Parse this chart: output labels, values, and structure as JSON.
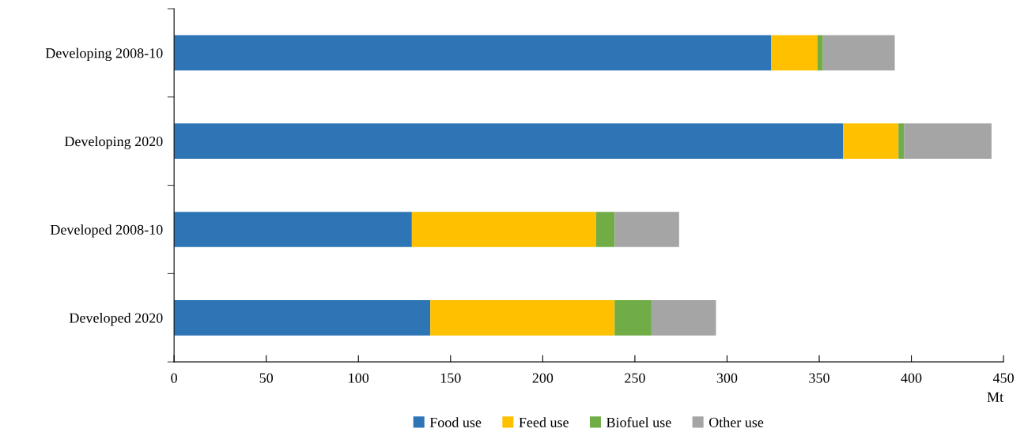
{
  "chart_data": {
    "type": "bar",
    "orientation": "horizontal",
    "stacked": true,
    "categories": [
      "Developing 2008-10",
      "Developing 2020",
      "Developed 2008-10",
      "Developed 2020"
    ],
    "series": [
      {
        "name": "Food use",
        "color": "#2e75b6",
        "values": [
          324,
          363,
          129,
          139
        ]
      },
      {
        "name": "Feed use",
        "color": "#ffc000",
        "values": [
          25,
          30,
          100,
          100
        ]
      },
      {
        "name": "Biofuel use",
        "color": "#70ad47",
        "values": [
          3,
          3,
          10,
          20
        ]
      },
      {
        "name": "Other use",
        "color": "#a5a5a5",
        "values": [
          39,
          47.5,
          35,
          35
        ]
      }
    ],
    "xlabel": "Mt",
    "xlim": [
      0,
      450
    ],
    "xticks": [
      0,
      50,
      100,
      150,
      200,
      250,
      300,
      350,
      400,
      450
    ],
    "legend": "bottom",
    "grid": false
  }
}
